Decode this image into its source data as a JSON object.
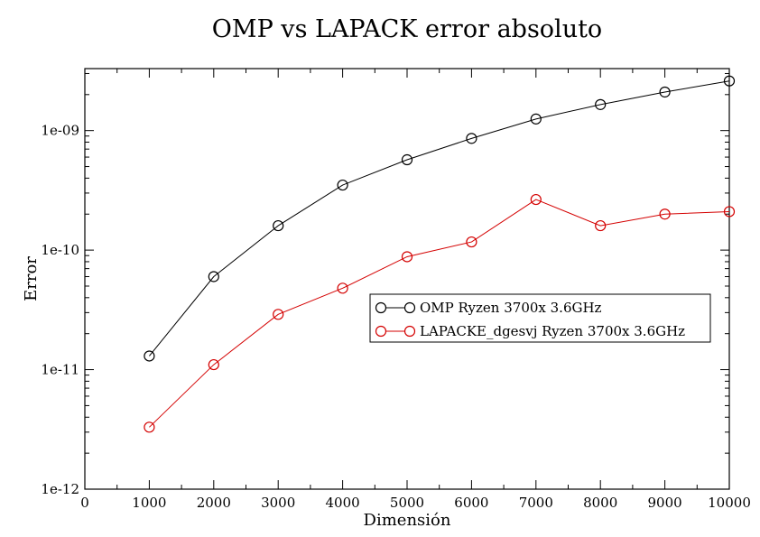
{
  "chart_data": {
    "type": "line",
    "title": "OMP vs LAPACK error absoluto",
    "xlabel": "Dimensión",
    "ylabel": "Error",
    "xlim": [
      0,
      10000
    ],
    "ylim": [
      1e-12,
      3.3e-09
    ],
    "yscale": "log",
    "x_ticks": [
      0,
      1000,
      2000,
      3000,
      4000,
      5000,
      6000,
      7000,
      8000,
      9000,
      10000
    ],
    "x_tick_labels": [
      "0",
      "1000",
      "2000",
      "3000",
      "4000",
      "5000",
      "6000",
      "7000",
      "8000",
      "9000",
      "10000"
    ],
    "y_ticks": [
      1e-12,
      1e-11,
      1e-10,
      1e-09
    ],
    "y_tick_labels": [
      "1e-12",
      "1e-11",
      "1e-10",
      "1e-09"
    ],
    "grid": false,
    "legend_position": "center-right",
    "series": [
      {
        "name": "OMP Ryzen 3700x 3.6GHz",
        "color": "#000000",
        "marker": "open-circle",
        "x": [
          1000,
          2000,
          3000,
          4000,
          5000,
          6000,
          7000,
          8000,
          9000,
          10000
        ],
        "y": [
          1.3e-11,
          6e-11,
          1.6e-10,
          3.5e-10,
          5.7e-10,
          8.6e-10,
          1.25e-09,
          1.65e-09,
          2.1e-09,
          2.6e-09
        ]
      },
      {
        "name": "LAPACKE_dgesvj Ryzen 3700x 3.6GHz",
        "color": "#d40000",
        "marker": "open-circle",
        "x": [
          1000,
          2000,
          3000,
          4000,
          5000,
          6000,
          7000,
          8000,
          9000,
          10000
        ],
        "y": [
          3.3e-12,
          1.1e-11,
          2.9e-11,
          4.8e-11,
          8.8e-11,
          1.17e-10,
          2.65e-10,
          1.6e-10,
          2e-10,
          2.1e-10
        ]
      }
    ]
  }
}
